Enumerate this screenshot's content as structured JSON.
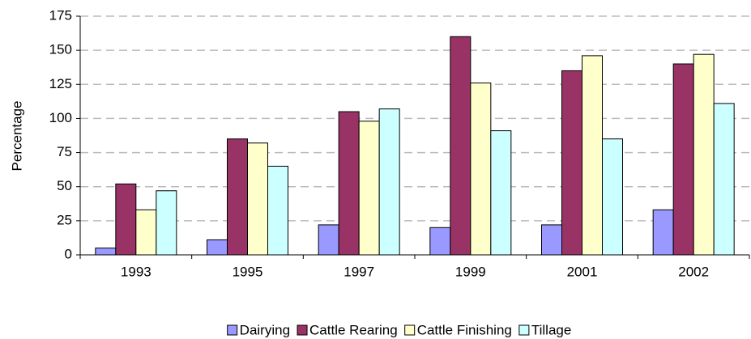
{
  "chart_data": {
    "type": "bar",
    "y_label": "Percentage",
    "categories": [
      "1993",
      "1995",
      "1997",
      "1999",
      "2001",
      "2002"
    ],
    "series": [
      {
        "name": "Dairying",
        "color": "#9999ff",
        "values": [
          5,
          11,
          22,
          20,
          22,
          33
        ]
      },
      {
        "name": "Cattle Rearing",
        "color": "#993366",
        "values": [
          52,
          85,
          105,
          160,
          135,
          140
        ]
      },
      {
        "name": "Cattle Finishing",
        "color": "#ffffcc",
        "values": [
          33,
          82,
          98,
          126,
          146,
          147
        ]
      },
      {
        "name": "Tillage",
        "color": "#ccffff",
        "values": [
          47,
          65,
          107,
          91,
          85,
          111
        ]
      }
    ],
    "ylim": [
      0,
      175
    ],
    "yticks": [
      0,
      25,
      50,
      75,
      100,
      125,
      150,
      175
    ],
    "grid": true,
    "legend": "bottom"
  }
}
